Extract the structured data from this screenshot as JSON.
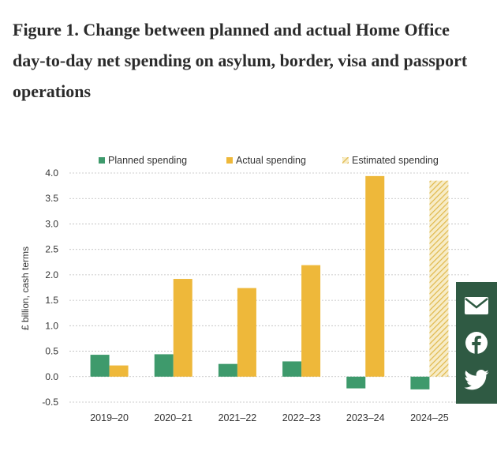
{
  "page": {
    "title": "Figure 1. Change between planned and actual Home Office day-to-day net spending on asylum, border, visa and passport operations"
  },
  "share": {
    "icons": [
      "email-icon",
      "facebook-icon",
      "twitter-icon"
    ],
    "color": "#2f5a43"
  },
  "chart_data": {
    "type": "bar",
    "title": "",
    "xlabel": "",
    "ylabel": "£ billion, cash terms",
    "ylim": [
      -0.5,
      4.0
    ],
    "yticks": [
      "4.0",
      "3.5",
      "3.0",
      "2.5",
      "2.0",
      "1.5",
      "1.0",
      "0.5",
      "0.0",
      "-0.5"
    ],
    "ytick_values": [
      4.0,
      3.5,
      3.0,
      2.5,
      2.0,
      1.5,
      1.0,
      0.5,
      0.0,
      -0.5
    ],
    "categories": [
      "2019–20",
      "2020–21",
      "2021–22",
      "2022–23",
      "2023–24",
      "2024–25"
    ],
    "legend": [
      "Planned spending",
      "Actual spending",
      "Estimated spending"
    ],
    "legend_position": "top",
    "grid": true,
    "colors": {
      "planned": "#3e9a6c",
      "actual": "#eeb83a",
      "estimated": "#e6c15a"
    },
    "series": [
      {
        "name": "Planned spending",
        "values": [
          0.43,
          0.44,
          0.25,
          0.3,
          -0.23,
          -0.25
        ]
      },
      {
        "name": "Actual spending",
        "values": [
          0.22,
          1.92,
          1.74,
          2.19,
          3.94,
          null
        ]
      },
      {
        "name": "Estimated spending",
        "values": [
          null,
          null,
          null,
          null,
          null,
          3.85
        ]
      }
    ]
  }
}
